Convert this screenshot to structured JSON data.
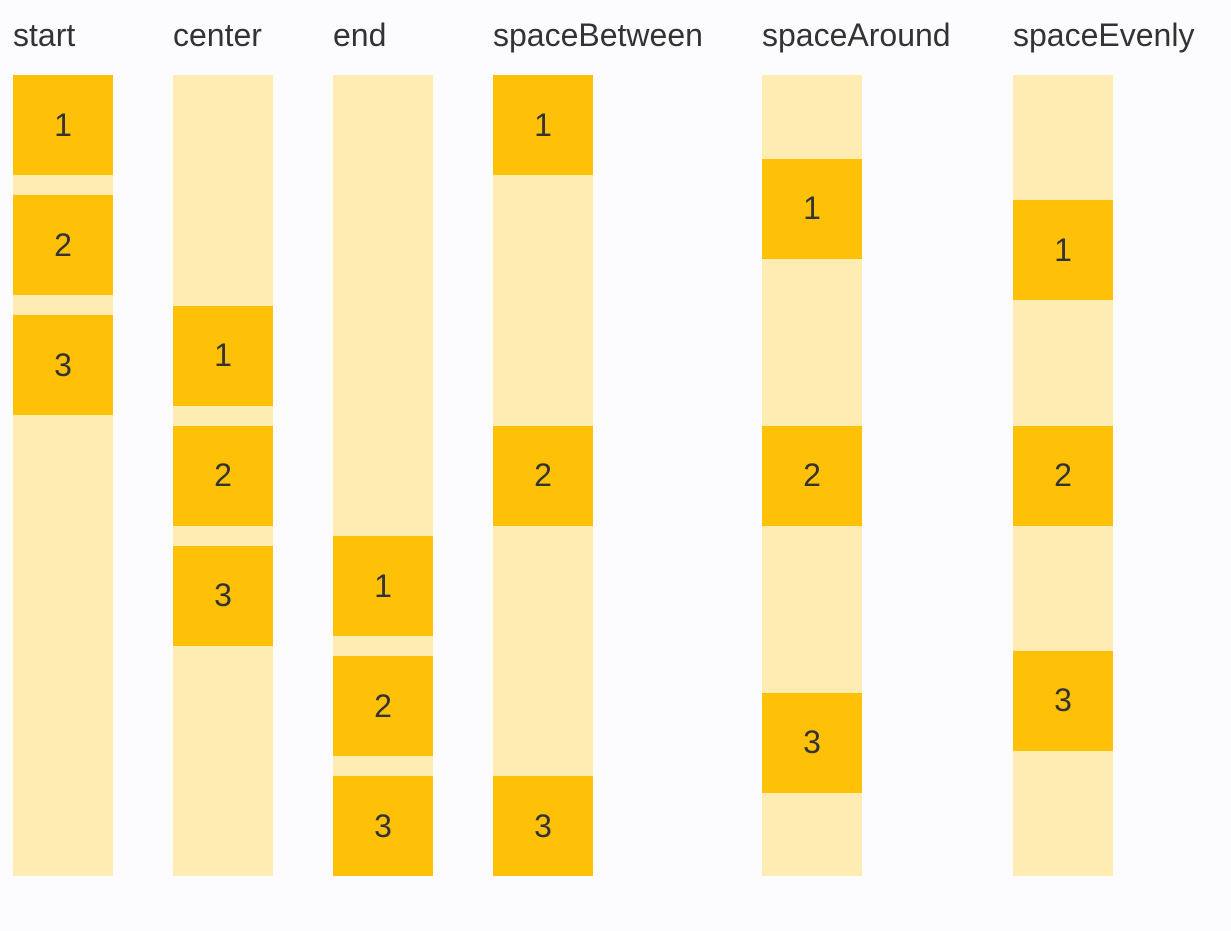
{
  "palette": {
    "box_color": "#ffc107",
    "track_color": "#ffecb3",
    "text_color": "#333333",
    "background_color": "#fcfcfe"
  },
  "columns": [
    {
      "label": "start",
      "mode": "start",
      "boxes": [
        "1",
        "2",
        "3"
      ]
    },
    {
      "label": "center",
      "mode": "center",
      "boxes": [
        "1",
        "2",
        "3"
      ]
    },
    {
      "label": "end",
      "mode": "end",
      "boxes": [
        "1",
        "2",
        "3"
      ]
    },
    {
      "label": "spaceBetween",
      "mode": "spaceBetween",
      "boxes": [
        "1",
        "2",
        "3"
      ]
    },
    {
      "label": "spaceAround",
      "mode": "spaceAround",
      "boxes": [
        "1",
        "2",
        "3"
      ]
    },
    {
      "label": "spaceEvenly",
      "mode": "spaceEvenly",
      "boxes": [
        "1",
        "2",
        "3"
      ]
    }
  ]
}
